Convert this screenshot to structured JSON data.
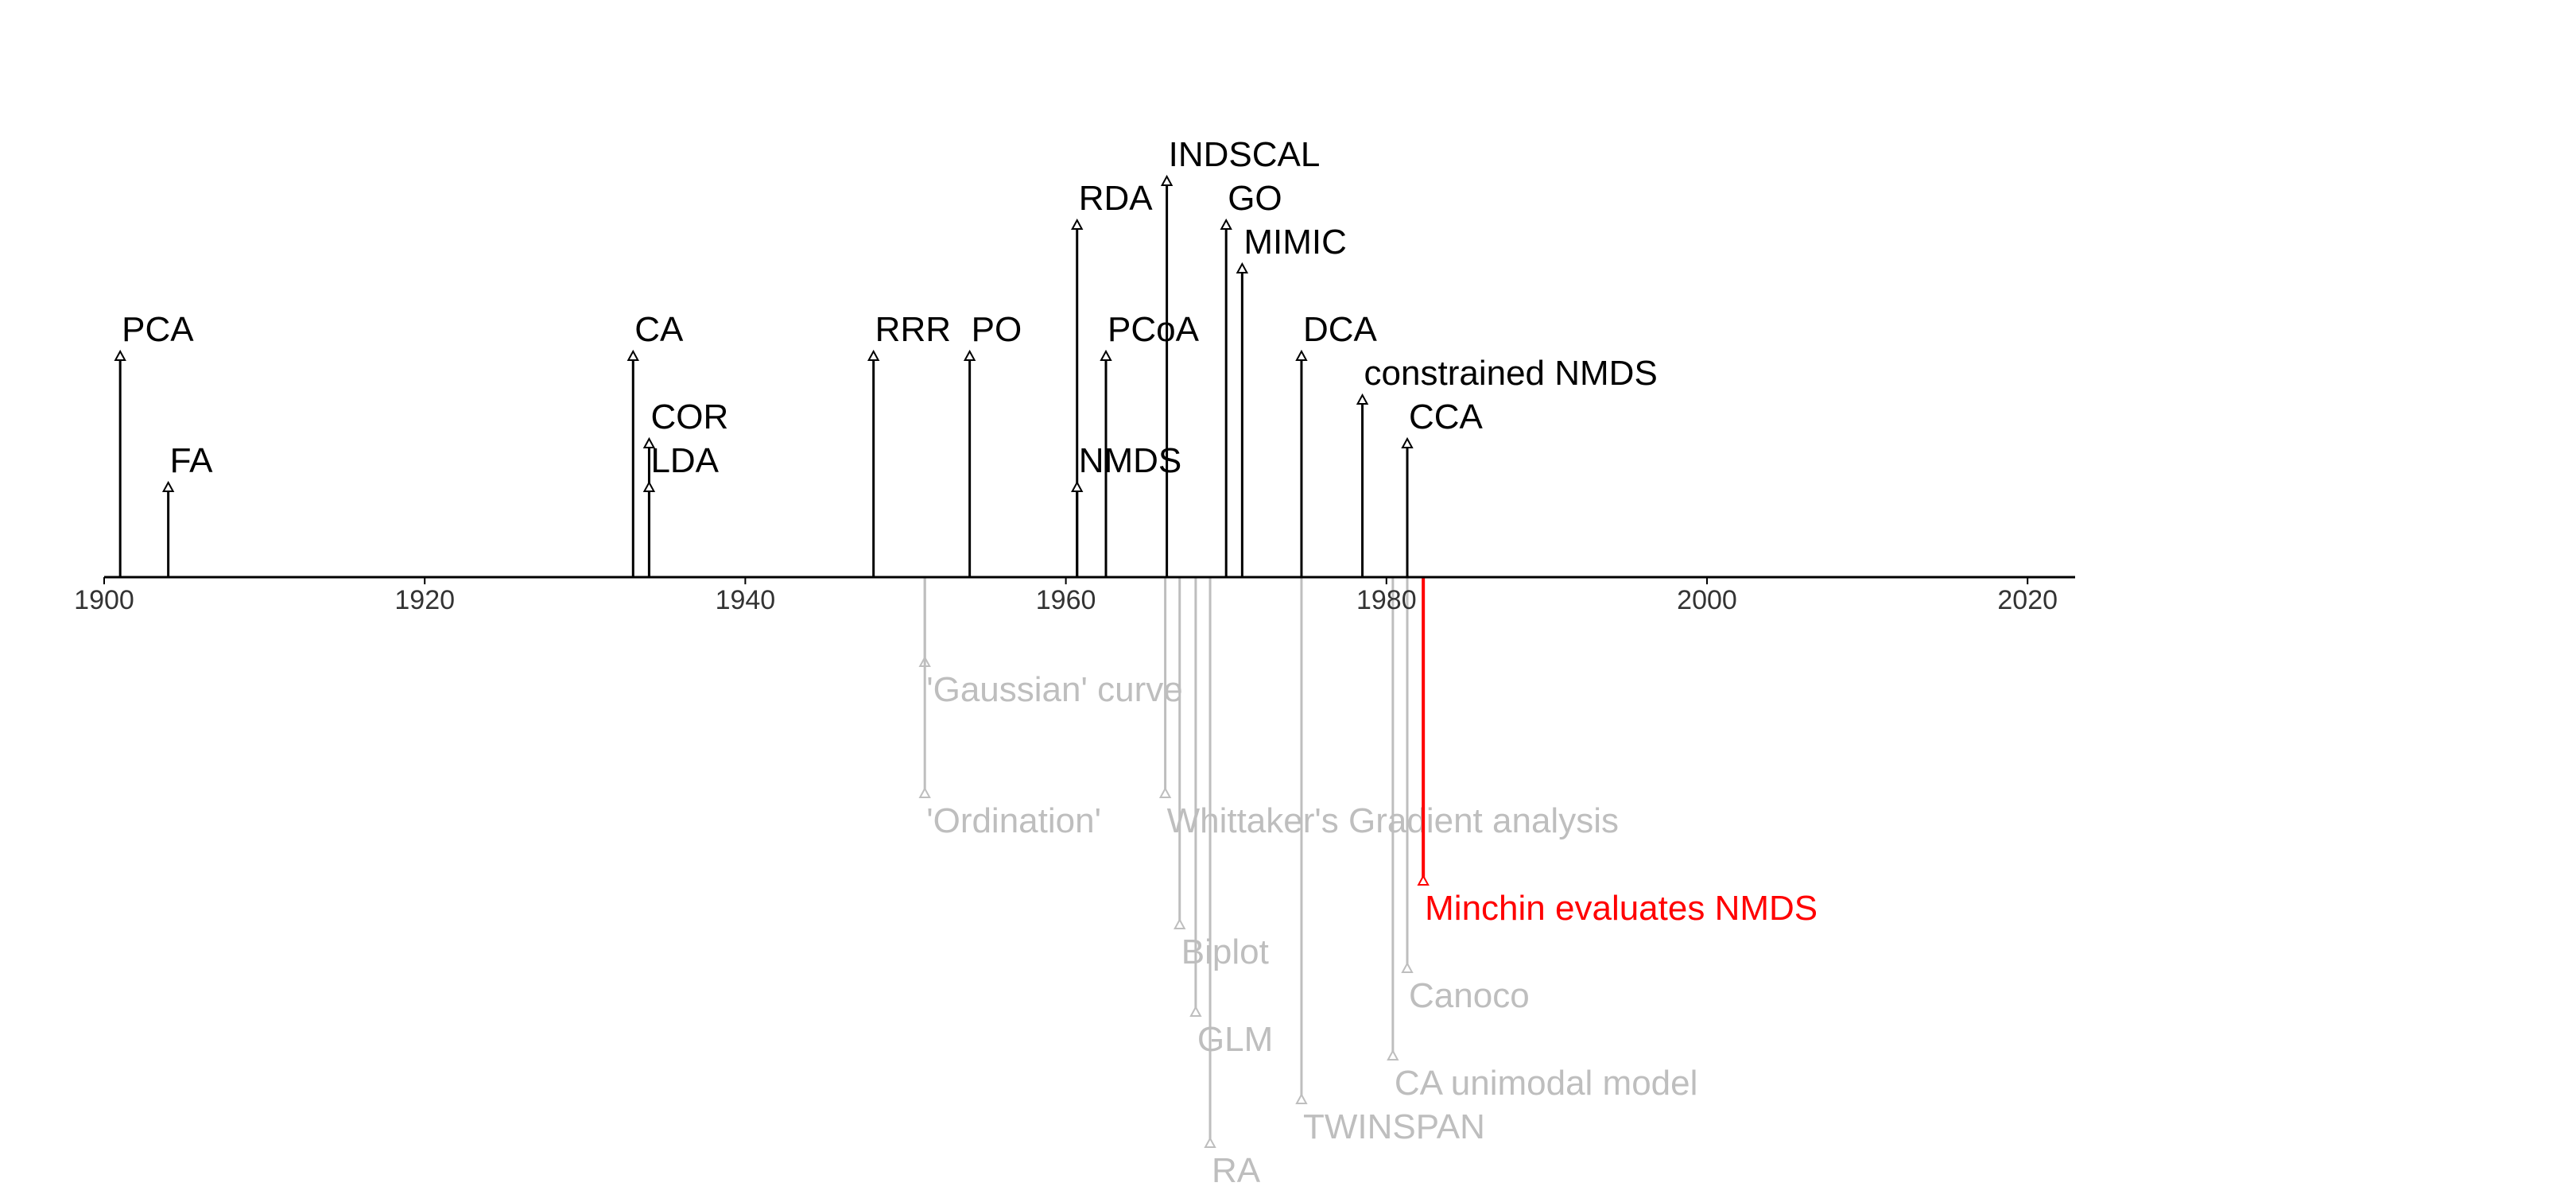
{
  "chart_data": {
    "type": "timeline",
    "title": "",
    "xlabel": "",
    "ylabel": "",
    "xlim": [
      1900,
      2022
    ],
    "x_ticks": [
      1900,
      1920,
      1940,
      1960,
      1980,
      2000,
      2020
    ],
    "grid": false,
    "legend": "none",
    "colors": {
      "above": "#000000",
      "below": "#bebebe",
      "highlight": "#ff0000",
      "axis": "#000000"
    },
    "above": [
      {
        "label": "PCA",
        "year": 1901,
        "level": 5
      },
      {
        "label": "FA",
        "year": 1904,
        "level": 2
      },
      {
        "label": "CA",
        "year": 1933,
        "level": 5
      },
      {
        "label": "COR",
        "year": 1934,
        "level": 3
      },
      {
        "label": "LDA",
        "year": 1934,
        "level": 2
      },
      {
        "label": "RRR",
        "year": 1948,
        "level": 5
      },
      {
        "label": "PO",
        "year": 1954,
        "level": 5
      },
      {
        "label": "RDA",
        "year": 1960.7,
        "level": 8
      },
      {
        "label": "NMDS",
        "year": 1960.7,
        "level": 2
      },
      {
        "label": "PCoA",
        "year": 1962.5,
        "level": 5
      },
      {
        "label": "INDSCAL",
        "year": 1966.3,
        "level": 9
      },
      {
        "label": "GO",
        "year": 1970,
        "level": 8
      },
      {
        "label": "MIMIC",
        "year": 1971,
        "level": 7
      },
      {
        "label": "DCA",
        "year": 1974.7,
        "level": 5
      },
      {
        "label": "constrained NMDS",
        "year": 1978.5,
        "level": 4
      },
      {
        "label": "CCA",
        "year": 1981.3,
        "level": 3
      }
    ],
    "below": [
      {
        "label": "'Gaussian' curve",
        "year": 1951.2,
        "level": 2,
        "highlight": false
      },
      {
        "label": "'Ordination'",
        "year": 1951.2,
        "level": 5,
        "highlight": false
      },
      {
        "label": "Whittaker's Gradient analysis",
        "year": 1966.2,
        "level": 5,
        "highlight": false
      },
      {
        "label": "Minchin evaluates NMDS",
        "year": 1982.3,
        "level": 7,
        "highlight": true
      },
      {
        "label": "Biplot",
        "year": 1967.1,
        "level": 8,
        "highlight": false
      },
      {
        "label": "Canoco",
        "year": 1981.3,
        "level": 9,
        "highlight": false
      },
      {
        "label": "GLM",
        "year": 1968.1,
        "level": 10,
        "highlight": false
      },
      {
        "label": "CA unimodal model",
        "year": 1980.4,
        "level": 11,
        "highlight": false
      },
      {
        "label": "TWINSPAN",
        "year": 1974.7,
        "level": 12,
        "highlight": false
      },
      {
        "label": "RA",
        "year": 1969,
        "level": 13,
        "highlight": false
      }
    ]
  }
}
